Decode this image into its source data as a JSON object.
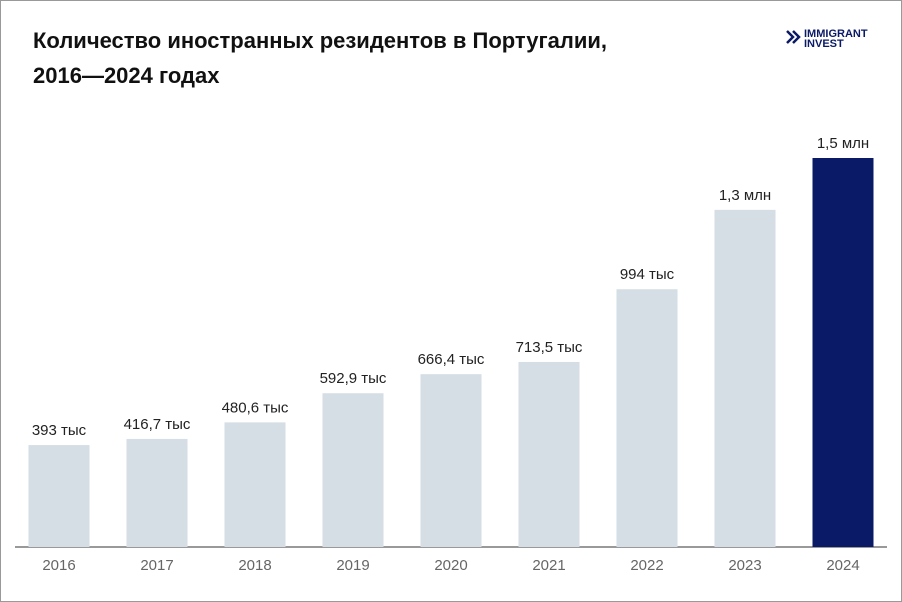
{
  "chart_data": {
    "type": "bar",
    "title_lines": [
      "Количество иностранных резидентов в Португалии,",
      "2016—2024 годах"
    ],
    "logo": [
      "IMMIGRANT",
      "INVEST"
    ],
    "categories": [
      "2016",
      "2017",
      "2018",
      "2019",
      "2020",
      "2021",
      "2022",
      "2023",
      "2024"
    ],
    "values": [
      393,
      416.7,
      480.6,
      592.9,
      666.4,
      713.5,
      994,
      1300,
      1500
    ],
    "value_labels": [
      "393 тыс",
      "416,7 тыс",
      "480,6 тыс",
      "592,9 тыс",
      "666,4 тыс",
      "713,5 тыс",
      "994 тыс",
      "1,3 млн",
      "1,5 млн"
    ],
    "colors": [
      "#d5dee5",
      "#d5dee5",
      "#d5dee5",
      "#d5dee5",
      "#d5dee5",
      "#d5dee5",
      "#d5dee5",
      "#d5dee5",
      "#0b1a66"
    ]
  }
}
